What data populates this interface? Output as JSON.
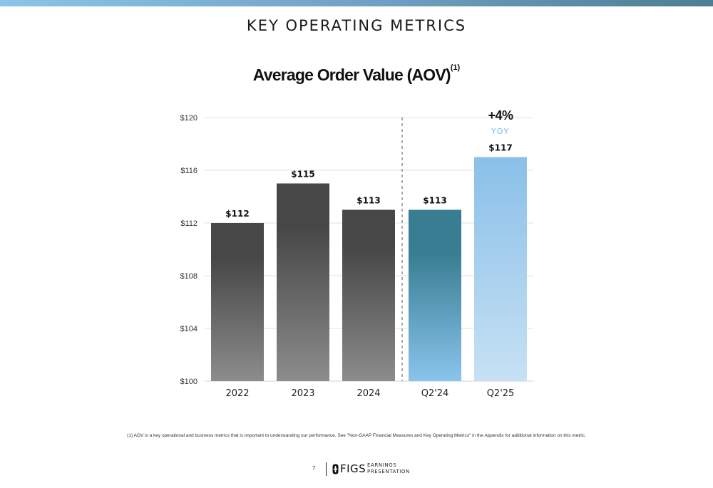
{
  "header": {
    "title": "KEY OPERATING METRICS"
  },
  "chart_data": {
    "type": "bar",
    "title": "Average Order Value (AOV)",
    "title_footnote_marker": "(1)",
    "categories": [
      "2022",
      "2023",
      "2024",
      "Q2'24",
      "Q2'25"
    ],
    "values": [
      112,
      115,
      113,
      113,
      117
    ],
    "value_labels": [
      "$112",
      "$115",
      "$113",
      "$113",
      "$117"
    ],
    "ylim": [
      100,
      120
    ],
    "yticks": [
      100,
      104,
      108,
      112,
      116,
      120
    ],
    "ytick_labels": [
      "$100",
      "$104",
      "$108",
      "$112",
      "$116",
      "$120"
    ],
    "grid": true,
    "annotation": {
      "value": "+4%",
      "label": "YOY"
    },
    "bar_colors": {
      "annual_top": "#474747",
      "annual_bottom": "#8c8c8c",
      "q2_24_top": "#387d91",
      "q2_24_bottom": "#8ac4ec",
      "q2_25_top": "#8ac0e9",
      "q2_25_bottom": "#c6e1f4",
      "yoy": "#7db8e0"
    }
  },
  "footnote": "(1) AOV is a  key operational and business metrics that is important to understanding our performance. See \"Non-GAAP Financial Measures and Key Operating Metrics\" in the Appendix for additional information on this metric.",
  "footer": {
    "page_number": "7",
    "logo_text": "FIGS",
    "subtitle_line1": "EARNINGS",
    "subtitle_line2": "PRESENTATION"
  }
}
